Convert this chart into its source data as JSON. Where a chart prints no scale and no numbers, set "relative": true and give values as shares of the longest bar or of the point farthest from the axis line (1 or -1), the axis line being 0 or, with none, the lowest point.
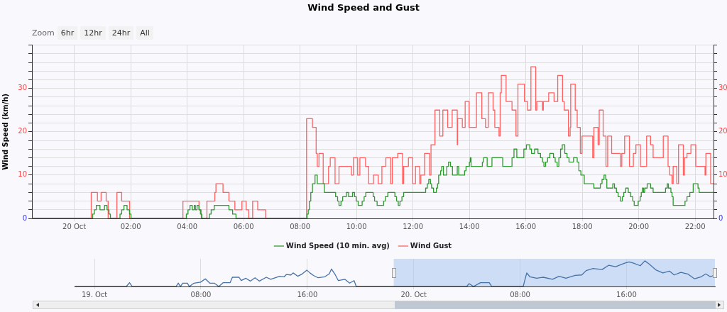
{
  "chart_data": [
    {
      "type": "step",
      "title": "Wind Speed and Gust",
      "ylabel": "Wind Speed (km/h)",
      "annotations": [
        "Zoom",
        "6hr",
        "12hr",
        "24hr",
        "All"
      ],
      "xlim": [
        -1.5,
        22.65
      ],
      "xticks": [
        {
          "value": 0,
          "label": "20 Oct"
        },
        {
          "value": 2,
          "label": "02:00"
        },
        {
          "value": 4,
          "label": "04:00"
        },
        {
          "value": 6,
          "label": "06:00"
        },
        {
          "value": 8,
          "label": "08:00"
        },
        {
          "value": 10,
          "label": "10:00"
        },
        {
          "value": 12,
          "label": "12:00"
        },
        {
          "value": 14,
          "label": "14:00"
        },
        {
          "value": 16,
          "label": "16:00"
        },
        {
          "value": 18,
          "label": "18:00"
        },
        {
          "value": 20,
          "label": "20:00"
        },
        {
          "value": 22,
          "label": "22:00"
        }
      ],
      "ylim": [
        0,
        40
      ],
      "yticks": [
        0,
        {
          "value": 2,
          "label": null
        },
        {
          "value": 4,
          "label": null
        },
        {
          "value": 6,
          "label": null
        },
        {
          "value": 8,
          "label": null
        },
        10,
        {
          "value": 12,
          "label": null
        },
        {
          "value": 14,
          "label": null
        },
        {
          "value": 16,
          "label": null
        },
        {
          "value": 18,
          "label": null
        },
        20,
        {
          "value": 22,
          "label": null
        },
        {
          "value": 24,
          "label": null
        },
        {
          "value": 26,
          "label": null
        },
        {
          "value": 28,
          "label": null
        },
        30,
        {
          "value": 32,
          "label": null
        },
        {
          "value": 34,
          "label": null
        },
        {
          "value": 36,
          "label": null
        },
        {
          "value": 38,
          "label": null
        },
        {
          "value": 40,
          "label": null
        }
      ],
      "y2lim": [
        0,
        40
      ],
      "y2ticks": [
        0,
        {
          "value": 2,
          "label": null
        },
        {
          "value": 4,
          "label": null
        },
        {
          "value": 6,
          "label": null
        },
        {
          "value": 8,
          "label": null
        },
        10,
        {
          "value": 12,
          "label": null
        },
        {
          "value": 14,
          "label": null
        },
        {
          "value": 16,
          "label": null
        },
        {
          "value": 18,
          "label": null
        },
        20,
        {
          "value": 22,
          "label": null
        },
        {
          "value": 24,
          "label": null
        },
        {
          "value": 26,
          "label": null
        },
        {
          "value": 28,
          "label": null
        },
        30,
        {
          "value": 32,
          "label": null
        },
        {
          "value": 34,
          "label": null
        },
        {
          "value": 36,
          "label": null
        },
        {
          "value": 38,
          "label": null
        },
        {
          "value": 40,
          "label": null
        }
      ],
      "grid": true,
      "legend": "bottom",
      "series": [
        {
          "name": "Wind Speed (10 min. avg)",
          "type": "step",
          "color": "#2e9a2e",
          "x": [
            -1.5,
            0.65,
            0.71,
            0.78,
            0.91,
            1.07,
            1.16,
            1.23,
            1.28,
            1.62,
            1.68,
            1.76,
            1.87,
            1.96,
            2.01,
            3.97,
            4.03,
            4.1,
            4.18,
            4.25,
            4.29,
            4.35,
            4.42,
            4.47,
            4.52,
            4.79,
            4.85,
            4.96,
            5.48,
            5.61,
            5.73,
            8.25,
            8.29,
            8.33,
            8.38,
            8.44,
            8.53,
            8.61,
            8.86,
            9.26,
            9.33,
            9.38,
            9.45,
            9.51,
            9.64,
            9.72,
            9.86,
            9.93,
            9.99,
            10.06,
            10.2,
            10.27,
            10.33,
            10.59,
            10.64,
            10.73,
            10.96,
            11.02,
            11.11,
            11.36,
            11.42,
            11.48,
            11.54,
            11.61,
            11.67,
            12.45,
            12.51,
            12.56,
            12.62,
            12.66,
            12.73,
            12.83,
            12.87,
            12.91,
            12.98,
            13.02,
            13.08,
            13.2,
            13.26,
            13.33,
            13.4,
            13.57,
            13.62,
            13.83,
            13.88,
            14.0,
            14.03,
            14.06,
            14.46,
            14.5,
            14.63,
            14.8,
            15.18,
            15.51,
            15.58,
            15.68,
            15.93,
            16.02,
            16.14,
            16.2,
            16.31,
            16.43,
            16.52,
            16.59,
            16.64,
            16.7,
            16.77,
            16.85,
            16.98,
            17.04,
            17.11,
            17.17,
            17.23,
            17.29,
            17.38,
            17.46,
            17.53,
            17.69,
            17.82,
            17.88,
            17.95,
            18.07,
            18.41,
            18.64,
            18.7,
            18.77,
            18.83,
            18.87,
            19.08,
            19.14,
            19.21,
            19.27,
            19.35,
            19.42,
            19.47,
            19.54,
            19.63,
            19.71,
            19.79,
            19.84,
            19.98,
            20.05,
            20.09,
            20.13,
            20.17,
            20.21,
            20.3,
            20.42,
            20.51,
            20.95,
            21.01,
            21.05,
            21.14,
            21.18,
            21.22,
            21.64,
            21.71,
            21.81,
            21.93,
            22.1,
            22.14,
            22.65
          ],
          "values": [
            0,
            1,
            2,
            3,
            2,
            3,
            2,
            1,
            0,
            1,
            2,
            3,
            2,
            1,
            0,
            1,
            2,
            3,
            2,
            3,
            2,
            3,
            2,
            1,
            0,
            1,
            2,
            3,
            2,
            1,
            0,
            1,
            2,
            4,
            6,
            8,
            10,
            8,
            6,
            5,
            4,
            3,
            4,
            5,
            6,
            5,
            6,
            5,
            4,
            3,
            4,
            5,
            6,
            5,
            4,
            3,
            4,
            5,
            6,
            5,
            4,
            3,
            4,
            5,
            6,
            7,
            8,
            9,
            8,
            7,
            6,
            7,
            8,
            10,
            11,
            12,
            10,
            12,
            13,
            12,
            10,
            12,
            10,
            11,
            12,
            13,
            14,
            12,
            13,
            14,
            12,
            14,
            12,
            14,
            16,
            14,
            16,
            17,
            16,
            15,
            16,
            15,
            14,
            13,
            12,
            13,
            14,
            15,
            14,
            13,
            12,
            14,
            16,
            17,
            15,
            14,
            13,
            14,
            13,
            11,
            10,
            8,
            7,
            8,
            9,
            10,
            9,
            7,
            8,
            7,
            6,
            5,
            4,
            5,
            6,
            7,
            6,
            5,
            4,
            3,
            4,
            5,
            6,
            7,
            6,
            7,
            8,
            7,
            6,
            7,
            8,
            7,
            6,
            5,
            3,
            4,
            5,
            6,
            8,
            7,
            6,
            6
          ]
        },
        {
          "name": "Wind Gust",
          "type": "step",
          "color": "#ff6060",
          "x": [
            -1.5,
            0.6,
            0.82,
            0.95,
            1.13,
            1.2,
            1.51,
            1.68,
            1.96,
            3.85,
            4.42,
            4.5,
            4.7,
            4.98,
            5.02,
            5.27,
            5.48,
            5.69,
            5.94,
            6.09,
            6.18,
            6.32,
            6.5,
            6.78,
            8.23,
            8.44,
            8.57,
            8.61,
            8.67,
            8.82,
            9.01,
            9.07,
            9.24,
            9.38,
            9.82,
            9.89,
            10.04,
            10.12,
            10.32,
            10.43,
            10.6,
            10.77,
            10.9,
            11.04,
            11.21,
            11.27,
            11.46,
            11.63,
            11.67,
            11.84,
            11.99,
            12.09,
            12.24,
            12.28,
            12.41,
            12.59,
            12.64,
            12.78,
            12.95,
            13.06,
            13.23,
            13.39,
            13.57,
            13.58,
            13.75,
            13.85,
            13.99,
            14.25,
            14.44,
            14.57,
            14.67,
            14.84,
            14.9,
            15.05,
            15.09,
            15.13,
            15.3,
            15.51,
            15.65,
            15.72,
            15.95,
            16.06,
            16.18,
            16.35,
            16.39,
            16.59,
            16.62,
            16.81,
            17.0,
            17.13,
            17.3,
            17.36,
            17.51,
            17.57,
            17.59,
            17.75,
            17.82,
            17.93,
            17.99,
            18.37,
            18.41,
            18.56,
            18.6,
            18.74,
            18.84,
            18.9,
            19.04,
            19.35,
            19.4,
            19.5,
            19.67,
            19.81,
            19.9,
            20.06,
            20.28,
            20.42,
            20.51,
            20.87,
            21.04,
            21.1,
            21.18,
            21.22,
            21.35,
            21.41,
            21.58,
            21.62,
            21.71,
            21.85,
            22.02,
            22.35,
            22.38,
            22.55,
            22.65
          ],
          "values": [
            0,
            6,
            4,
            6,
            4,
            0,
            6,
            4,
            0,
            4,
            2,
            0,
            4,
            6,
            8,
            6,
            4,
            2,
            4,
            2,
            0,
            4,
            2,
            0,
            23,
            21,
            15,
            12,
            15,
            8,
            12,
            14,
            8,
            12,
            10,
            14,
            10,
            14,
            12,
            8,
            10,
            8,
            12,
            14,
            8,
            14,
            15,
            8,
            12,
            14,
            8,
            12,
            8,
            10,
            15,
            10,
            17,
            25,
            19,
            25,
            21,
            25,
            17,
            23,
            21,
            27,
            21,
            29,
            23,
            21,
            29,
            25,
            21,
            19,
            29,
            33,
            27,
            25,
            19,
            31,
            27,
            25,
            35,
            25,
            27,
            25,
            27,
            29,
            27,
            33,
            27,
            25,
            19,
            21,
            31,
            25,
            21,
            15,
            19,
            14,
            21,
            17,
            25,
            19,
            12,
            19,
            15,
            12,
            15,
            19,
            12,
            15,
            17,
            12,
            19,
            17,
            14,
            19,
            12,
            10,
            8,
            12,
            8,
            17,
            10,
            14,
            15,
            17,
            12,
            10,
            15,
            8,
            8
          ]
        }
      ]
    },
    {
      "type": "line",
      "relative": true,
      "grid": "x",
      "xlim": [
        "--10-18T22:30",
        "--10-20T22:39"
      ],
      "xticks": [
        {
          "value": "--10-19T00:00",
          "label": "19. Oct"
        },
        {
          "value": "--10-19T08:00",
          "label": "08:00"
        },
        {
          "value": "--10-19T16:00",
          "label": "16:00"
        },
        {
          "value": "--10-20T00:00",
          "label": "20. Oct"
        },
        {
          "value": "--10-20T08:00",
          "label": "08:00"
        },
        {
          "value": "--10-20T16:00",
          "label": "16:00"
        }
      ],
      "bands": [
        {
          "axis": "x",
          "from": "--10-19T22:30",
          "to": "--10-20T22:39",
          "color": "#a9c6ef"
        }
      ],
      "series": [
        {
          "color": "#4572a7",
          "x": [
            "--10-18T22:30",
            "--10-19T02:24",
            "--10-19T02:38",
            "--10-19T02:50",
            "--10-19T06:08",
            "--10-19T06:18",
            "--10-19T06:28",
            "--10-19T06:38",
            "--10-19T06:59",
            "--10-19T07:08",
            "--10-19T07:29",
            "--10-19T07:59",
            "--10-19T08:20",
            "--10-19T08:40",
            "--10-19T09:00",
            "--10-19T09:21",
            "--10-19T09:41",
            "--10-19T10:12",
            "--10-19T10:22",
            "--10-19T10:52",
            "--10-19T11:02",
            "--10-19T11:23",
            "--10-19T11:43",
            "--10-19T12:04",
            "--10-19T12:24",
            "--10-19T12:55",
            "--10-19T13:15",
            "--10-19T13:55",
            "--10-19T14:16",
            "--10-19T14:26",
            "--10-19T14:46",
            "--10-19T14:56",
            "--10-19T15:17",
            "--10-19T15:37",
            "--10-19T15:58",
            "--10-19T16:12",
            "--10-19T16:28",
            "--10-19T16:49",
            "--10-19T17:19",
            "--10-19T17:39",
            "--10-19T17:49",
            "--10-19T18:04",
            "--10-19T18:20",
            "--10-19T18:50",
            "--10-19T19:11",
            "--10-19T19:31",
            "--10-19T19:41",
            "--10-19T20:02",
            "--10-20T03:59",
            "--10-20T04:10",
            "--10-20T04:30",
            "--10-20T05:01",
            "--10-20T05:41",
            "--10-20T05:52",
            "--10-20T08:14",
            "--10-20T08:30",
            "--10-20T08:44",
            "--10-20T09:15",
            "--10-20T09:45",
            "--10-20T10:26",
            "--10-20T10:56",
            "--10-20T11:27",
            "--10-20T12:08",
            "--10-20T12:38",
            "--10-20T12:58",
            "--10-20T13:29",
            "--10-20T14:10",
            "--10-20T14:40",
            "--10-20T15:11",
            "--10-20T15:52",
            "--10-20T16:12",
            "--10-20T16:32",
            "--10-20T17:02",
            "--10-20T17:23",
            "--10-20T17:43",
            "--10-20T18:14",
            "--10-20T18:44",
            "--10-20T19:14",
            "--10-20T19:35",
            "--10-20T20:05",
            "--10-20T20:36",
            "--10-20T21:07",
            "--10-20T21:37",
            "--10-20T21:58",
            "--10-20T22:18",
            "--10-20T22:38"
          ],
          "values": [
            0,
            0,
            0.15,
            0,
            0,
            0.13,
            0,
            0.13,
            0.13,
            0,
            0.13,
            0.17,
            0.3,
            0.13,
            0.13,
            0,
            0.15,
            0.15,
            0.36,
            0.36,
            0.23,
            0.32,
            0.21,
            0.34,
            0.21,
            0.36,
            0.28,
            0.4,
            0.38,
            0.47,
            0.45,
            0.53,
            0.4,
            0.49,
            0.64,
            0.53,
            0.43,
            0.34,
            0.38,
            0.49,
            0.68,
            0.49,
            0.23,
            0.28,
            0.13,
            0.23,
            0,
            0,
            0,
            0.11,
            0,
            0.15,
            0.15,
            0,
            0,
            0.53,
            0.38,
            0.32,
            0.36,
            0.28,
            0.4,
            0.32,
            0.43,
            0.45,
            0.62,
            0.7,
            0.66,
            0.83,
            0.77,
            0.91,
            0.96,
            0.91,
            0.81,
            1,
            0.87,
            0.64,
            0.53,
            0.6,
            0.45,
            0.55,
            0.49,
            0.3,
            0.38,
            0.49,
            0.38,
            0.45
          ]
        }
      ]
    }
  ]
}
